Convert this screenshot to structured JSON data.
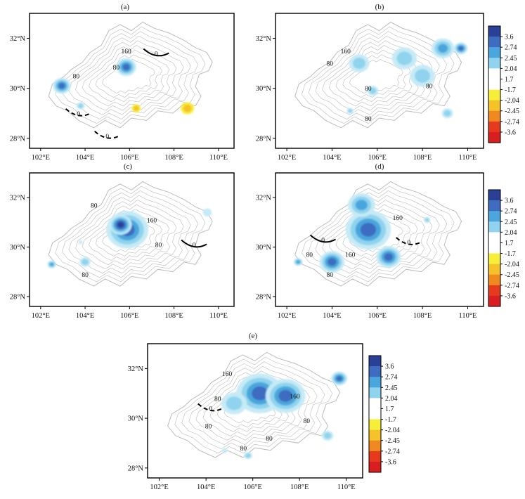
{
  "chart_data": {
    "type": "heatmap",
    "colorbar": {
      "labels": [
        "3.6",
        "2.74",
        "2.45",
        "2.04",
        "1.7",
        "-1.7",
        "-2.04",
        "-2.45",
        "-2.74",
        "-3.6"
      ],
      "colors": [
        "#2a3f96",
        "#3d6cc0",
        "#4aa6dc",
        "#8fd3ee",
        "#ffffff",
        "#ffffff",
        "#f7ee3a",
        "#f5c22a",
        "#f08a20",
        "#e63a1e",
        "#d81e1e"
      ]
    },
    "xticks": [
      "102°E",
      "104°E",
      "106°E",
      "108°E",
      "110°E"
    ],
    "yticks": [
      "28°N",
      "30°N",
      "32°N"
    ],
    "xlim": [
      101.5,
      110.7
    ],
    "ylim": [
      27.6,
      33.0
    ],
    "contour_labels": [
      "0",
      "80",
      "160"
    ],
    "panels": [
      {
        "label": "(a)",
        "blobs": [
          {
            "lon": 102.95,
            "lat": 30.1,
            "r": 0.4,
            "v": 2.9
          },
          {
            "lon": 103.8,
            "lat": 29.3,
            "r": 0.18,
            "v": 2.3
          },
          {
            "lon": 105.85,
            "lat": 30.85,
            "r": 0.45,
            "v": 2.8
          },
          {
            "lon": 106.3,
            "lat": 29.2,
            "r": 0.2,
            "v": -2.3
          },
          {
            "lon": 108.6,
            "lat": 29.2,
            "r": 0.3,
            "v": -2.2
          }
        ],
        "contours": [
          {
            "v": 160,
            "lon": 105.85,
            "lat": 31.4
          },
          {
            "v": 80,
            "lon": 105.4,
            "lat": 30.75
          },
          {
            "v": 80,
            "lon": 103.6,
            "lat": 30.4
          },
          {
            "v": 0,
            "lon": 103.7,
            "lat": 28.9
          },
          {
            "v": 0,
            "lon": 107.2,
            "lat": 31.3
          },
          {
            "v": 0,
            "lon": 105.0,
            "lat": 28.0
          }
        ]
      },
      {
        "label": "(b)",
        "blobs": [
          {
            "lon": 105.2,
            "lat": 31.0,
            "r": 0.45,
            "v": 2.2
          },
          {
            "lon": 107.2,
            "lat": 31.2,
            "r": 0.55,
            "v": 2.3
          },
          {
            "lon": 108.0,
            "lat": 30.5,
            "r": 0.55,
            "v": 2.4
          },
          {
            "lon": 108.9,
            "lat": 31.6,
            "r": 0.5,
            "v": 2.6
          },
          {
            "lon": 109.7,
            "lat": 31.6,
            "r": 0.3,
            "v": 3.0
          },
          {
            "lon": 109.1,
            "lat": 29.0,
            "r": 0.25,
            "v": 2.1
          },
          {
            "lon": 105.8,
            "lat": 29.9,
            "r": 0.25,
            "v": 2.1
          },
          {
            "lon": 104.8,
            "lat": 29.1,
            "r": 0.15,
            "v": 2.1
          }
        ],
        "contours": [
          {
            "v": 160,
            "lon": 104.6,
            "lat": 31.4
          },
          {
            "v": 80,
            "lon": 103.9,
            "lat": 30.9
          },
          {
            "v": 80,
            "lon": 105.6,
            "lat": 29.9
          },
          {
            "v": 80,
            "lon": 108.3,
            "lat": 30.0
          },
          {
            "v": 80,
            "lon": 105.6,
            "lat": 28.7
          }
        ]
      },
      {
        "label": "(c)",
        "blobs": [
          {
            "lon": 105.9,
            "lat": 30.7,
            "r": 0.95,
            "v": 2.9
          },
          {
            "lon": 105.6,
            "lat": 30.9,
            "r": 0.5,
            "v": 3.6
          },
          {
            "lon": 104.0,
            "lat": 29.4,
            "r": 0.25,
            "v": 2.3
          },
          {
            "lon": 102.5,
            "lat": 29.3,
            "r": 0.2,
            "v": 2.5
          },
          {
            "lon": 109.5,
            "lat": 31.4,
            "r": 0.2,
            "v": 2.0
          },
          {
            "lon": 103.8,
            "lat": 30.2,
            "r": 0.1,
            "v": 2.0
          }
        ],
        "contours": [
          {
            "v": 160,
            "lon": 107.0,
            "lat": 31.0
          },
          {
            "v": 80,
            "lon": 104.4,
            "lat": 31.6
          },
          {
            "v": 80,
            "lon": 107.3,
            "lat": 30.0
          },
          {
            "v": 80,
            "lon": 104.0,
            "lat": 28.8
          },
          {
            "v": 0,
            "lon": 108.9,
            "lat": 30.0
          }
        ]
      },
      {
        "label": "(d)",
        "blobs": [
          {
            "lon": 105.6,
            "lat": 30.7,
            "r": 1.0,
            "v": 3.2
          },
          {
            "lon": 105.3,
            "lat": 31.7,
            "r": 0.6,
            "v": 2.5
          },
          {
            "lon": 104.0,
            "lat": 29.4,
            "r": 0.55,
            "v": 3.4
          },
          {
            "lon": 106.5,
            "lat": 29.6,
            "r": 0.55,
            "v": 2.8
          },
          {
            "lon": 102.5,
            "lat": 29.4,
            "r": 0.2,
            "v": 2.6
          },
          {
            "lon": 108.2,
            "lat": 31.1,
            "r": 0.15,
            "v": 2.1
          }
        ],
        "contours": [
          {
            "v": 160,
            "lon": 106.9,
            "lat": 31.1
          },
          {
            "v": 160,
            "lon": 104.8,
            "lat": 29.6
          },
          {
            "v": 80,
            "lon": 103.0,
            "lat": 29.6
          },
          {
            "v": 80,
            "lon": 103.9,
            "lat": 28.8
          },
          {
            "v": 0,
            "lon": 103.6,
            "lat": 30.2
          },
          {
            "v": 0,
            "lon": 107.4,
            "lat": 30.1
          }
        ]
      },
      {
        "label": "(e)",
        "blobs": [
          {
            "lon": 106.3,
            "lat": 31.0,
            "r": 1.0,
            "v": 2.9
          },
          {
            "lon": 107.4,
            "lat": 30.9,
            "r": 0.85,
            "v": 3.1
          },
          {
            "lon": 105.2,
            "lat": 30.6,
            "r": 0.55,
            "v": 2.3
          },
          {
            "lon": 109.7,
            "lat": 31.6,
            "r": 0.35,
            "v": 2.8
          },
          {
            "lon": 109.2,
            "lat": 29.3,
            "r": 0.25,
            "v": 2.1
          },
          {
            "lon": 105.8,
            "lat": 28.5,
            "r": 0.18,
            "v": 2.2
          },
          {
            "lon": 104.8,
            "lat": 28.7,
            "r": 0.12,
            "v": 2.0
          }
        ],
        "contours": [
          {
            "v": 160,
            "lon": 104.9,
            "lat": 31.7
          },
          {
            "v": 160,
            "lon": 107.8,
            "lat": 30.8
          },
          {
            "v": 80,
            "lon": 104.5,
            "lat": 30.7
          },
          {
            "v": 80,
            "lon": 104.1,
            "lat": 29.6
          },
          {
            "v": 80,
            "lon": 106.7,
            "lat": 29.1
          },
          {
            "v": 80,
            "lon": 108.3,
            "lat": 29.8
          },
          {
            "v": 80,
            "lon": 105.6,
            "lat": 28.7
          },
          {
            "v": 0,
            "lon": 104.2,
            "lat": 30.3
          }
        ]
      }
    ]
  }
}
